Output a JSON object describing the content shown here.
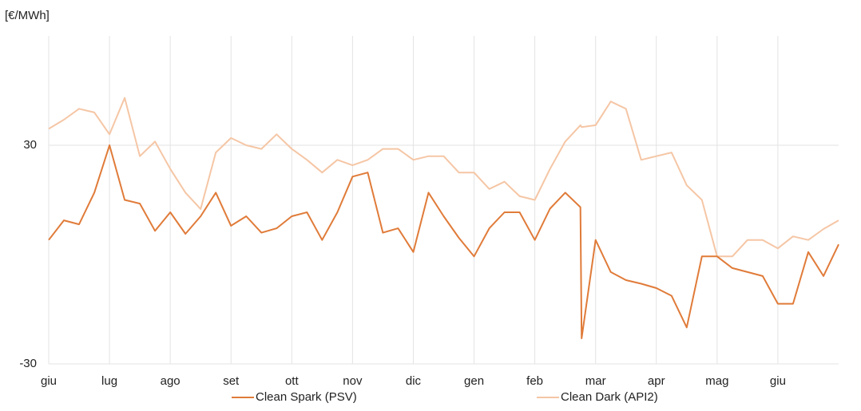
{
  "chart_data": {
    "type": "line",
    "y_label": "[€/MWh]",
    "x": [
      0,
      0.25,
      0.5,
      0.75,
      1,
      1.25,
      1.5,
      1.75,
      2,
      2.25,
      2.5,
      2.75,
      3,
      3.25,
      3.5,
      3.75,
      4,
      4.25,
      4.5,
      4.75,
      5,
      5.25,
      5.5,
      5.75,
      6,
      6.25,
      6.5,
      6.75,
      7,
      7.25,
      7.5,
      7.75,
      8,
      8.25,
      8.5,
      8.75,
      8.77,
      9,
      9.25,
      9.5,
      9.75,
      10,
      10.25,
      10.5,
      10.75,
      11,
      11.25,
      11.5,
      11.75,
      12,
      12.25,
      12.5,
      12.75,
      13
    ],
    "xlim": [
      0,
      13
    ],
    "xticks": [
      {
        "value": 0,
        "label": "giu"
      },
      {
        "value": 1,
        "label": "lug"
      },
      {
        "value": 2,
        "label": "ago"
      },
      {
        "value": 3,
        "label": "set"
      },
      {
        "value": 4,
        "label": "ott"
      },
      {
        "value": 5,
        "label": "nov"
      },
      {
        "value": 6,
        "label": "dic"
      },
      {
        "value": 7,
        "label": "gen"
      },
      {
        "value": 8,
        "label": "feb"
      },
      {
        "value": 9,
        "label": "mar"
      },
      {
        "value": 10,
        "label": "apr"
      },
      {
        "value": 11,
        "label": "mag"
      },
      {
        "value": 12,
        "label": "giu"
      }
    ],
    "ylim": [
      -30,
      60
    ],
    "yticks": [
      -30,
      30
    ],
    "grid": true,
    "series": [
      {
        "name": "Clean Spark (PSV)",
        "color": "#e07b39",
        "values": [
          4,
          9.4,
          8.3,
          17,
          30,
          15,
          14,
          6.5,
          11.6,
          5.7,
          10.5,
          17,
          7.9,
          10.5,
          6,
          7.2,
          10.5,
          11.6,
          4,
          11.6,
          21.4,
          22.5,
          6,
          7.2,
          0.7,
          17,
          10.5,
          4.6,
          -0.5,
          7.2,
          11.6,
          11.6,
          4,
          12.6,
          17,
          13,
          -23,
          4,
          -4.8,
          -7,
          -8,
          -9.2,
          -11.3,
          -20,
          -0.5,
          -0.5,
          -3.7,
          -4.8,
          -5.9,
          -13.5,
          -13.5,
          0.7,
          -5.9,
          2.8
        ]
      },
      {
        "name": "Clean Dark (API2)",
        "color": "#f5c6a5",
        "values": [
          34.5,
          37,
          40,
          39,
          33,
          43,
          27,
          31,
          23.5,
          17,
          12.5,
          28,
          32,
          30,
          29,
          33,
          29,
          26,
          22.5,
          26,
          24.5,
          26,
          29,
          29,
          26,
          27,
          27,
          22.5,
          22.5,
          18,
          20,
          16,
          15,
          23.5,
          31,
          35.5,
          35,
          35.5,
          42,
          40,
          26,
          27,
          28,
          19,
          15,
          -0.5,
          -0.5,
          4,
          4,
          1.7,
          5,
          4,
          7,
          9.4
        ]
      }
    ]
  }
}
